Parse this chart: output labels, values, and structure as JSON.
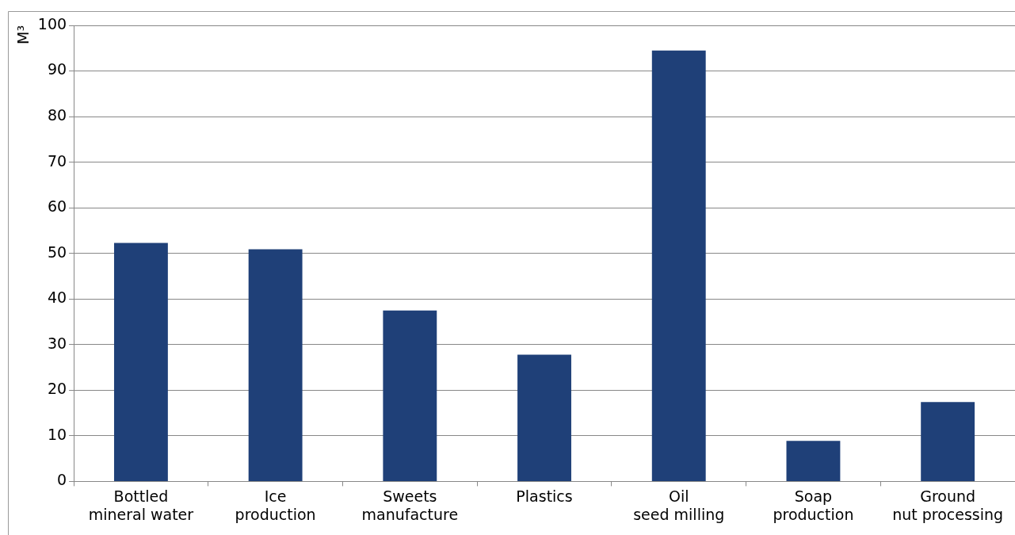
{
  "chart_data": {
    "type": "bar",
    "ylabel": "M³",
    "categories": [
      "Bottled mineral water",
      "Ice production",
      "Sweets manufacture",
      "Plastics",
      "Oil seed milling",
      "Soap production",
      "Ground nut processing"
    ],
    "values": [
      52.3,
      50.9,
      37.5,
      27.8,
      94.5,
      8.9,
      17.4
    ],
    "color": "#1f4078",
    "ylim": [
      0,
      100
    ],
    "yticks": [
      0,
      10,
      20,
      30,
      40,
      50,
      60,
      70,
      80,
      90,
      100
    ],
    "grid": "y",
    "legend": false
  }
}
